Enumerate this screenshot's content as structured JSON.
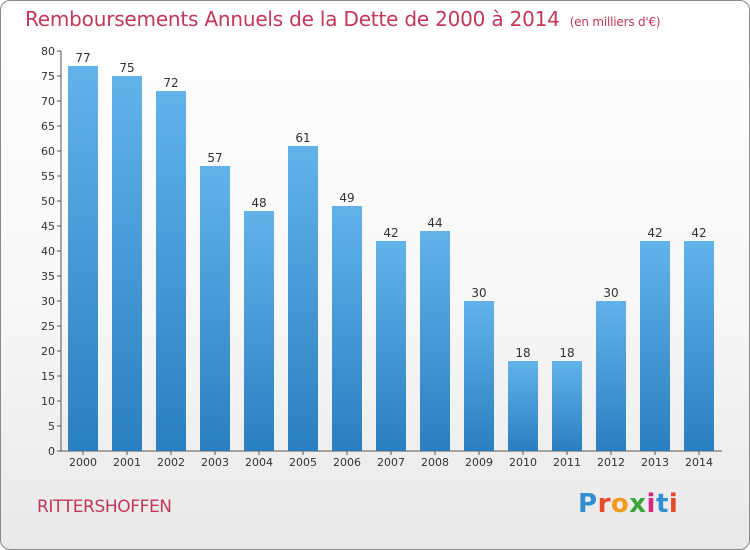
{
  "header": {
    "title": "Remboursements Annuels de la Dette de 2000 à 2014",
    "subtitle": "(en milliers d'€)"
  },
  "footer": {
    "town": "RITTERSHOFFEN",
    "logo_letters": [
      "P",
      "r",
      "o",
      "x",
      "i",
      "t",
      "i"
    ],
    "logo_colors": [
      "#2f8fd0",
      "#e64a2a",
      "#f29a1d",
      "#3aa63a",
      "#d4288a",
      "#2f8fd0",
      "#e64a2a"
    ]
  },
  "colors": {
    "bar_light": "#62b3ea",
    "bar_dark": "#2a7fc0",
    "title": "#c2375a"
  },
  "chart_data": {
    "type": "bar",
    "title": "Remboursements Annuels de la Dette de 2000 à 2014",
    "xlabel": "",
    "ylabel": "",
    "ylim": [
      0,
      80
    ],
    "ytick_step": 5,
    "grid": false,
    "categories": [
      "2000",
      "2001",
      "2002",
      "2003",
      "2004",
      "2005",
      "2006",
      "2007",
      "2008",
      "2009",
      "2010",
      "2011",
      "2012",
      "2013",
      "2014"
    ],
    "values": [
      77,
      75,
      72,
      57,
      48,
      61,
      49,
      42,
      44,
      30,
      18,
      18,
      30,
      42,
      42
    ]
  }
}
